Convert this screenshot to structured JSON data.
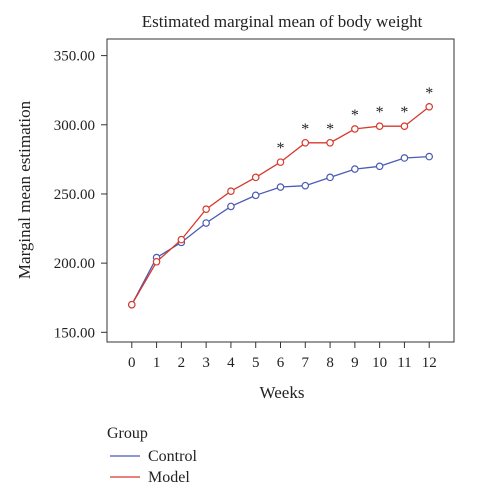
{
  "chart_data": {
    "type": "line",
    "title": "Estimated marginal mean of body weight",
    "xlabel": "Weeks",
    "ylabel": "Marginal mean estimation",
    "x": [
      0,
      1,
      2,
      3,
      4,
      5,
      6,
      7,
      8,
      9,
      10,
      11,
      12
    ],
    "x_tick_labels": [
      "0",
      "1",
      "2",
      "3",
      "4",
      "5",
      "6",
      "7",
      "8",
      "9",
      "10",
      "11",
      "12"
    ],
    "y_ticks": [
      150,
      200,
      250,
      300,
      350
    ],
    "y_tick_labels": [
      "150.00",
      "200.00",
      "250.00",
      "300.00",
      "350.00"
    ],
    "ylim": [
      143,
      362
    ],
    "xlim": [
      -1,
      13
    ],
    "grid": false,
    "series": [
      {
        "name": "Control",
        "color": "#4a5bb3",
        "values": [
          170,
          204,
          215,
          229,
          241,
          249,
          255,
          256,
          262,
          268,
          270,
          276,
          277
        ]
      },
      {
        "name": "Model",
        "color": "#d63a2e",
        "values": [
          170,
          201,
          217,
          239,
          252,
          262,
          273,
          287,
          287,
          297,
          299,
          299,
          313
        ]
      }
    ],
    "significance_marker": "*",
    "significant_x": [
      6,
      7,
      8,
      9,
      10,
      11,
      12
    ],
    "legend": {
      "title": "Group",
      "placement": "bottom-left"
    }
  }
}
